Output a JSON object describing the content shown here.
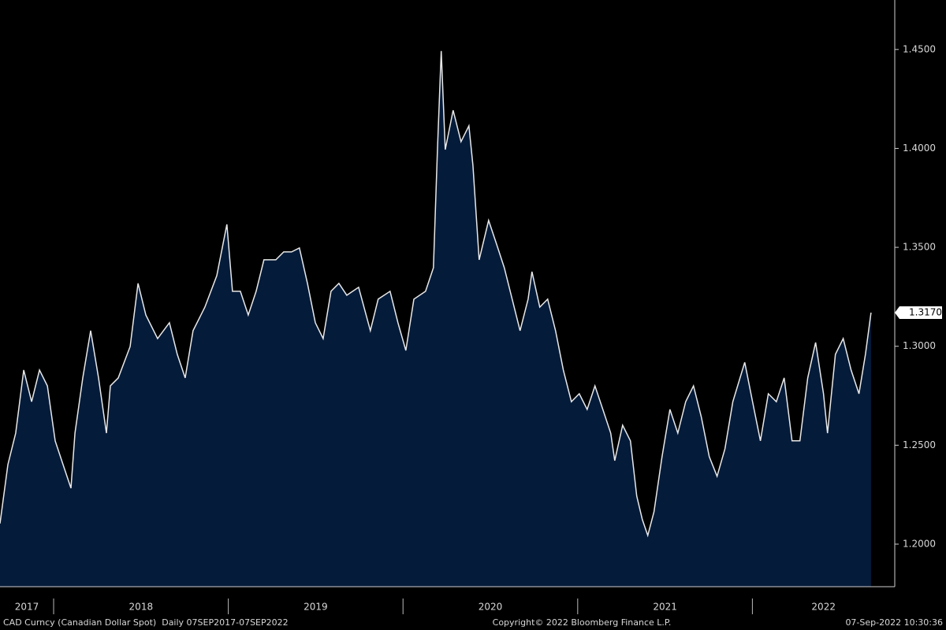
{
  "chart_data": {
    "type": "area",
    "x": [
      2017.693,
      2017.738,
      2017.783,
      2017.829,
      2017.874,
      2017.919,
      2017.964,
      2018.009,
      2018.054,
      2018.099,
      2018.122,
      2018.167,
      2018.212,
      2018.257,
      2018.302,
      2018.325,
      2018.37,
      2018.438,
      2018.483,
      2018.528,
      2018.595,
      2018.663,
      2018.708,
      2018.753,
      2018.798,
      2018.866,
      2018.934,
      2018.992,
      2019.024,
      2019.069,
      2019.114,
      2019.159,
      2019.204,
      2019.272,
      2019.317,
      2019.362,
      2019.407,
      2019.453,
      2019.498,
      2019.543,
      2019.588,
      2019.633,
      2019.678,
      2019.746,
      2019.813,
      2019.858,
      2019.926,
      2019.971,
      2020.016,
      2020.062,
      2020.129,
      2020.174,
      2020.197,
      2020.219,
      2020.242,
      2020.287,
      2020.332,
      2020.377,
      2020.4,
      2020.436,
      2020.49,
      2020.535,
      2020.58,
      2020.625,
      2020.67,
      2020.716,
      2020.738,
      2020.783,
      2020.828,
      2020.873,
      2020.918,
      2020.964,
      2021.009,
      2021.054,
      2021.099,
      2021.144,
      2021.189,
      2021.212,
      2021.257,
      2021.302,
      2021.338,
      2021.37,
      2021.401,
      2021.437,
      2021.483,
      2021.528,
      2021.573,
      2021.618,
      2021.663,
      2021.708,
      2021.753,
      2021.798,
      2021.843,
      2021.888,
      2021.956,
      2022.001,
      2022.046,
      2022.091,
      2022.137,
      2022.182,
      2022.227,
      2022.272,
      2022.317,
      2022.362,
      2022.407,
      2022.43,
      2022.475,
      2022.52,
      2022.565,
      2022.61,
      2022.647,
      2022.679
    ],
    "values": [
      1.2104,
      1.2402,
      1.2561,
      1.288,
      1.272,
      1.288,
      1.28,
      1.2522,
      1.2402,
      1.2283,
      1.2561,
      1.284,
      1.3079,
      1.284,
      1.2561,
      1.28,
      1.284,
      1.2999,
      1.3318,
      1.3158,
      1.3039,
      1.3119,
      1.2959,
      1.284,
      1.3079,
      1.3198,
      1.3357,
      1.3616,
      1.3278,
      1.3278,
      1.3158,
      1.3278,
      1.3437,
      1.3437,
      1.3477,
      1.3477,
      1.3497,
      1.3318,
      1.3119,
      1.3039,
      1.3278,
      1.3318,
      1.3258,
      1.3298,
      1.3079,
      1.3238,
      1.3278,
      1.3119,
      1.2979,
      1.3238,
      1.3278,
      1.3397,
      1.3994,
      1.4492,
      1.3994,
      1.4193,
      1.4034,
      1.4114,
      1.3915,
      1.3437,
      1.3636,
      1.3517,
      1.3397,
      1.3238,
      1.3079,
      1.3238,
      1.3377,
      1.3198,
      1.3238,
      1.3079,
      1.288,
      1.272,
      1.276,
      1.2681,
      1.28,
      1.2681,
      1.2561,
      1.2422,
      1.2601,
      1.2522,
      1.2243,
      1.2124,
      1.2044,
      1.2164,
      1.2442,
      1.2681,
      1.2561,
      1.272,
      1.28,
      1.2641,
      1.2442,
      1.2343,
      1.2482,
      1.272,
      1.2919,
      1.272,
      1.2522,
      1.276,
      1.272,
      1.284,
      1.2522,
      1.2522,
      1.284,
      1.3019,
      1.276,
      1.2561,
      1.2959,
      1.3039,
      1.288,
      1.276,
      1.2959,
      1.317
    ],
    "last_value_label": "1.3170",
    "fill_color": "#051b3a",
    "line_color": "#e8e8e8",
    "xlim": [
      2017.693,
      2022.815
    ],
    "xticks": [
      2018,
      2019,
      2020,
      2021,
      2022
    ],
    "year_labels": [
      2017,
      2018,
      2019,
      2020,
      2021,
      2022
    ],
    "ylim": [
      1.1785,
      1.475
    ],
    "yticks": [
      {
        "value": 1.2,
        "label": "1.2000"
      },
      {
        "value": 1.25,
        "label": "1.2500"
      },
      {
        "value": 1.3,
        "label": "1.3000"
      },
      {
        "value": 1.35,
        "label": "1.3500"
      },
      {
        "value": 1.4,
        "label": "1.4000"
      },
      {
        "value": 1.45,
        "label": "1.4500"
      }
    ],
    "footer_left": "CAD Curncy (Canadian Dollar Spot)  Daily 07SEP2017-07SEP2022",
    "footer_center": "Copyright© 2022 Bloomberg Finance L.P.",
    "footer_right": "07-Sep-2022 10:30:36"
  }
}
